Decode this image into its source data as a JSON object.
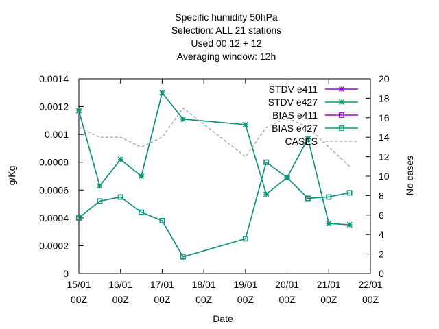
{
  "chart_data": {
    "type": "line",
    "title_lines": [
      "Specific humidity 50hPa",
      "Selection: ALL      21 stations",
      "Used  00,12  + 12",
      "Averaging window: 12h"
    ],
    "xlabel": "Date",
    "ylabel": "g/Kg",
    "y2label": "No cases",
    "xlim": [
      0,
      7
    ],
    "x_tick_labels": [
      [
        "15/01",
        "00Z"
      ],
      [
        "16/01",
        "00Z"
      ],
      [
        "17/01",
        "00Z"
      ],
      [
        "18/01",
        "00Z"
      ],
      [
        "19/01",
        "00Z"
      ],
      [
        "20/01",
        "00Z"
      ],
      [
        "21/01",
        "00Z"
      ],
      [
        "22/01",
        "00Z"
      ]
    ],
    "ylim": [
      0,
      0.0014
    ],
    "y_ticks": [
      "0",
      "0.0002",
      "0.0004",
      "0.0006",
      "0.0008",
      "0.001",
      "0.0012",
      "0.0014"
    ],
    "y2lim": [
      0,
      20
    ],
    "y2_ticks": [
      "0",
      "2",
      "4",
      "6",
      "8",
      "10",
      "12",
      "14",
      "16",
      "18",
      "20"
    ],
    "grid": false,
    "legend_position": "top-right",
    "series": [
      {
        "name": "STDV e411",
        "color": "#9400d3",
        "marker": "x",
        "axis": "y",
        "x": [
          0,
          0.5,
          1,
          1.5,
          2,
          2.5,
          4,
          4.5,
          5,
          5.5,
          6,
          6.5
        ],
        "y": [
          0.00117,
          0.00063,
          0.00082,
          0.0007,
          0.0013,
          0.00111,
          0.00107,
          0.00057,
          0.00069,
          0.00097,
          0.00036,
          0.00035
        ]
      },
      {
        "name": "STDV e427",
        "color": "#009e73",
        "marker": "x",
        "axis": "y",
        "x": [
          0,
          0.5,
          1,
          1.5,
          2,
          2.5,
          4,
          4.5,
          5,
          5.5,
          6,
          6.5
        ],
        "y": [
          0.00117,
          0.00063,
          0.00082,
          0.0007,
          0.0013,
          0.00111,
          0.00107,
          0.00057,
          0.00069,
          0.00097,
          0.00036,
          0.00035
        ]
      },
      {
        "name": "BIAS e411",
        "color": "#9400d3",
        "marker": "square",
        "axis": "y",
        "x": [
          0,
          0.5,
          1,
          1.5,
          2,
          2.5,
          4,
          4.5,
          5,
          5.5,
          6,
          6.5
        ],
        "y": [
          0.0004,
          0.00052,
          0.00055,
          0.00044,
          0.00038,
          0.00012,
          0.00025,
          0.0008,
          0.00069,
          0.00054,
          0.00055,
          0.00058
        ]
      },
      {
        "name": "BIAS e427",
        "color": "#009e73",
        "marker": "square",
        "axis": "y",
        "x": [
          0,
          0.5,
          1,
          1.5,
          2,
          2.5,
          4,
          4.5,
          5,
          5.5,
          6,
          6.5
        ],
        "y": [
          0.0004,
          0.00052,
          0.00055,
          0.00044,
          0.00038,
          0.00012,
          0.00025,
          0.0008,
          0.00069,
          0.00054,
          0.00055,
          0.00058
        ]
      },
      {
        "name": "CASES",
        "color": "#a0a0a0",
        "marker": "none",
        "dash": true,
        "axis": "y2",
        "x": [
          0,
          0.5,
          1,
          1.5,
          2,
          2.5,
          4,
          4.5,
          5,
          5.5,
          6,
          6.5
        ],
        "y": [
          15,
          14,
          14,
          13,
          14,
          17,
          12,
          15,
          16,
          15,
          13,
          11
        ]
      }
    ]
  }
}
